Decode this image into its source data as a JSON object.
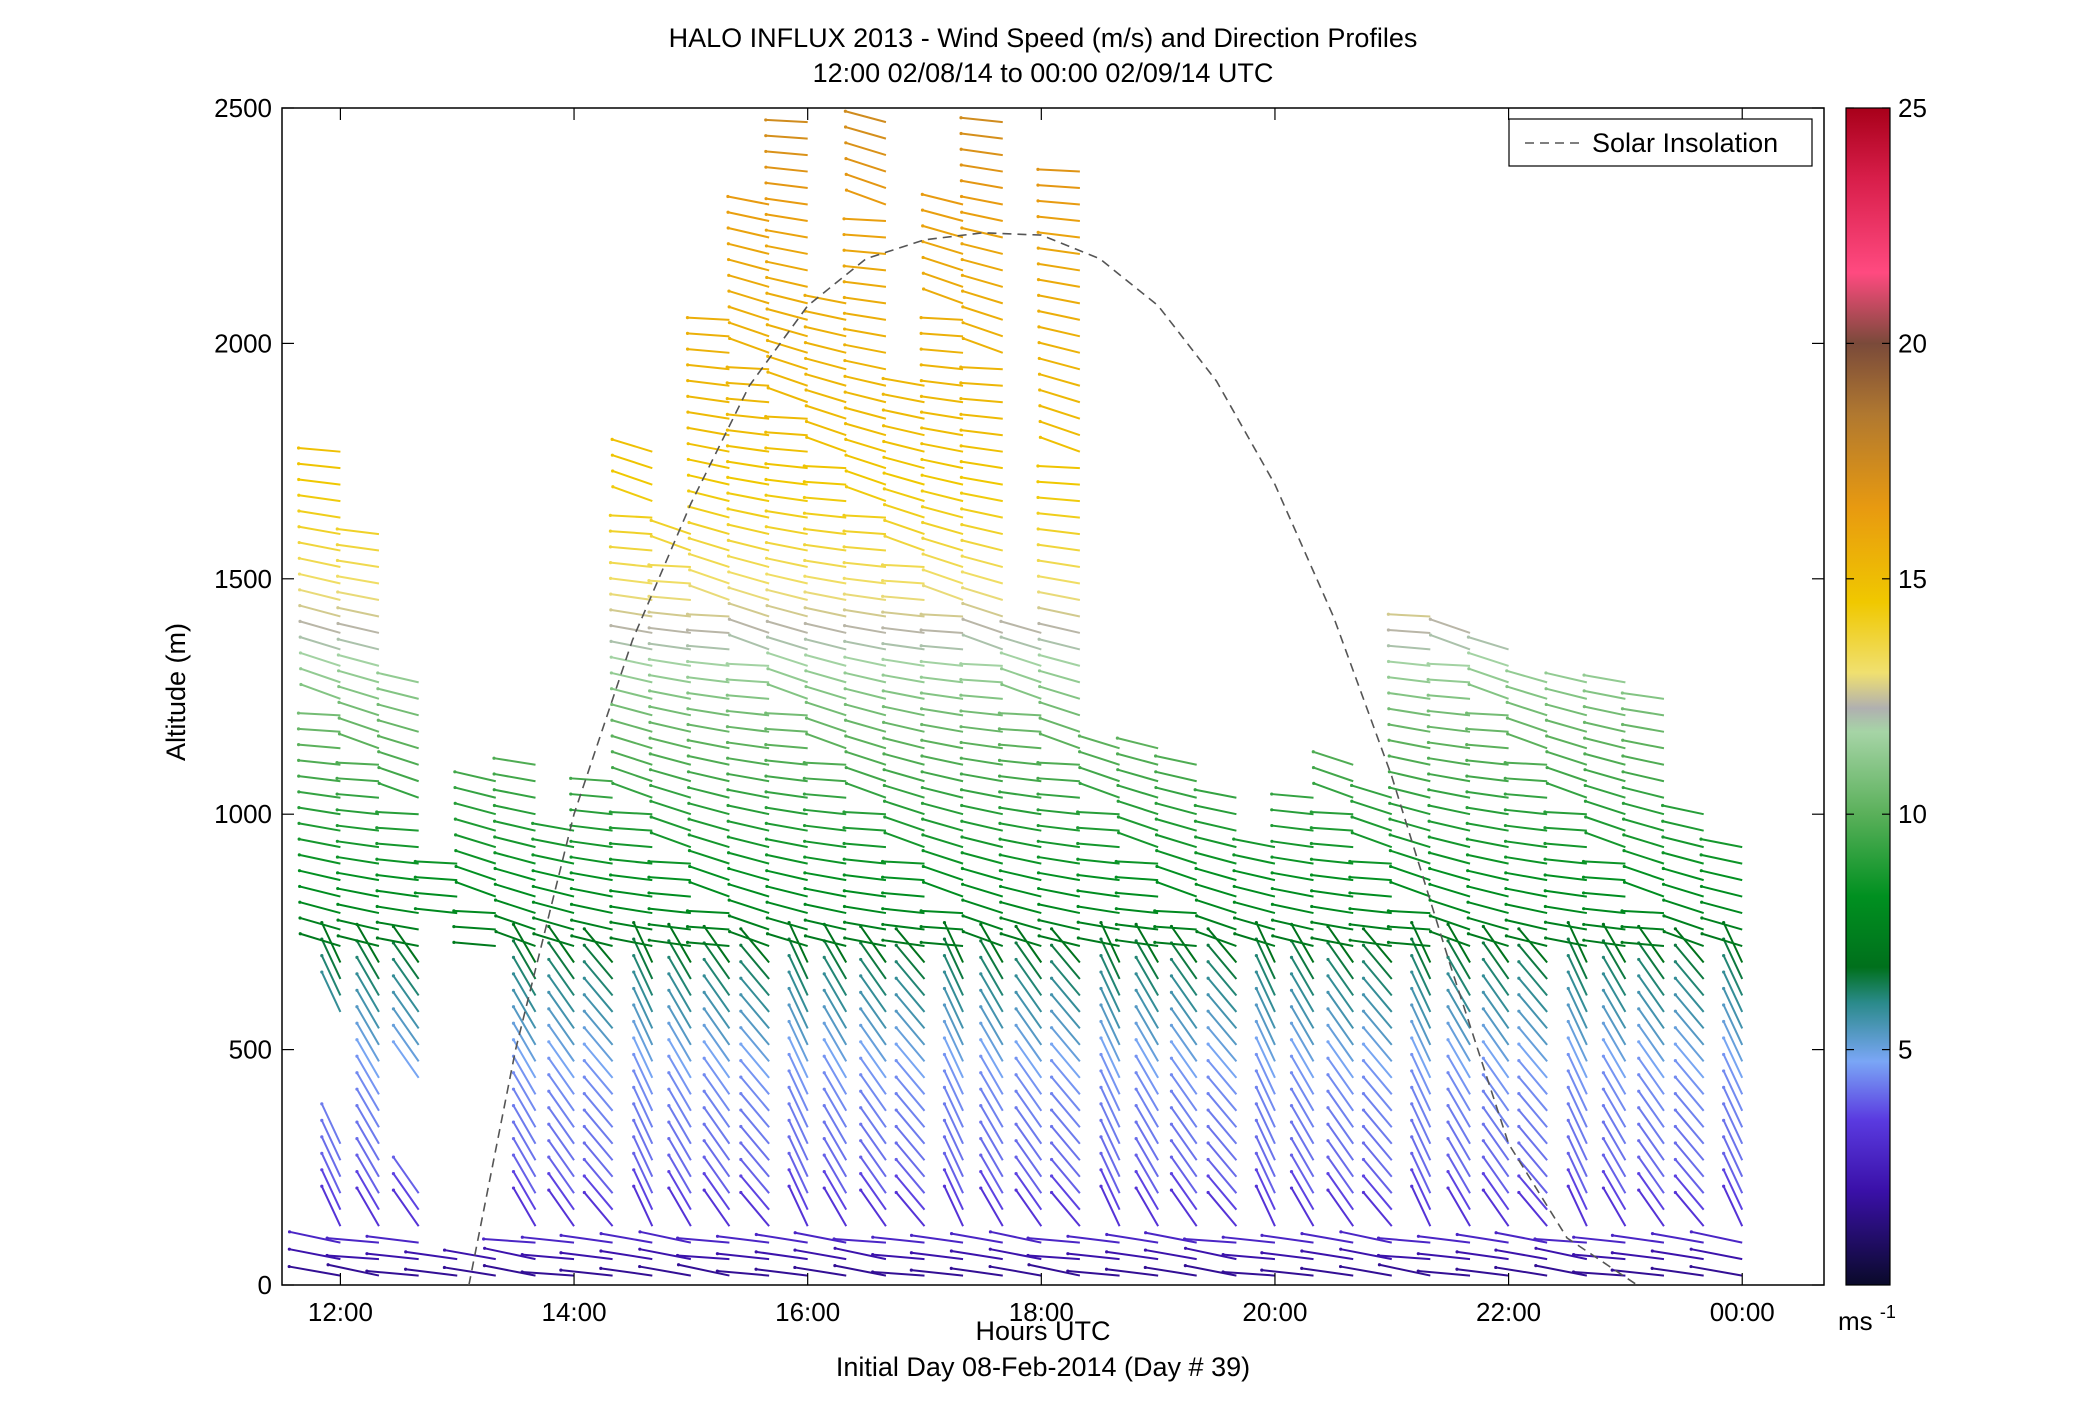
{
  "chart_data": {
    "type": "scatter",
    "title": "HALO INFLUX 2013 - Wind Speed (m/s) and Direction Profiles",
    "subtitle": "12:00 02/08/14 to 00:00 02/09/14  UTC",
    "xlabel": "Hours UTC",
    "footer": "Initial Day 08-Feb-2014 (Day # 39)",
    "ylabel": "Altitude (m)",
    "xlim": [
      11.5,
      24.7
    ],
    "ylim": [
      0,
      2500
    ],
    "x_ticks": [
      12,
      14,
      16,
      18,
      20,
      22,
      24
    ],
    "x_tick_labels": [
      "12:00",
      "14:00",
      "16:00",
      "18:00",
      "20:00",
      "22:00",
      "00:00"
    ],
    "y_ticks": [
      0,
      500,
      1000,
      1500,
      2000,
      2500
    ],
    "y_tick_labels": [
      "0",
      "500",
      "1000",
      "1500",
      "2000",
      "2500"
    ],
    "legend": {
      "label": "Solar Insolation",
      "location": "top-right"
    },
    "colorbar": {
      "ticks": [
        5,
        10,
        15,
        20,
        25
      ],
      "tick_labels": [
        "5",
        "10",
        "15",
        "20",
        "25"
      ],
      "unit_base": "ms",
      "unit_exp": "-1",
      "range": [
        0,
        25
      ]
    },
    "solar_insolation_curve": {
      "style": "dashed",
      "color": "#555555",
      "x": [
        13.1,
        13.5,
        14.0,
        14.5,
        15.0,
        15.5,
        16.0,
        16.5,
        17.0,
        17.5,
        18.0,
        18.5,
        19.0,
        19.5,
        20.0,
        20.5,
        21.0,
        21.5,
        22.0,
        22.5,
        23.1
      ],
      "y": [
        0,
        500,
        1000,
        1370,
        1660,
        1910,
        2080,
        2180,
        2220,
        2235,
        2230,
        2180,
        2080,
        1920,
        1700,
        1420,
        1080,
        680,
        300,
        100,
        0
      ]
    },
    "wind_barb_profiles": {
      "x": [
        12.0,
        12.33,
        12.67,
        13.0,
        13.33,
        13.67,
        14.0,
        14.33,
        14.67,
        15.0,
        15.33,
        15.67,
        16.0,
        16.33,
        16.67,
        17.0,
        17.33,
        17.67,
        18.0,
        18.33,
        18.67,
        19.0,
        19.33,
        19.67,
        20.0,
        20.33,
        20.67,
        21.0,
        21.33,
        21.67,
        22.0,
        22.33,
        22.67,
        23.0,
        23.33,
        23.67,
        24.0
      ],
      "top_altitude_m": [
        1780,
        1610,
        1290,
        920,
        1100,
        1130,
        990,
        1080,
        1780,
        1620,
        2050,
        2310,
        2500,
        2100,
        2500,
        1920,
        2320,
        2500,
        1400,
        2370,
        1160,
        1150,
        1120,
        1060,
        960,
        1060,
        1110,
        1060,
        1450,
        1400,
        1360,
        1290,
        1290,
        1280,
        1250,
        1000,
        950
      ],
      "bottom_altitude_m": [
        0,
        0,
        0,
        0,
        0,
        0,
        0,
        0,
        0,
        0,
        0,
        0,
        0,
        0,
        0,
        0,
        0,
        0,
        0,
        0,
        0,
        0,
        0,
        0,
        0,
        0,
        0,
        0,
        0,
        0,
        0,
        0,
        0,
        0,
        0,
        0,
        0
      ],
      "gap_altitude_m": [
        [
          300,
          580
        ],
        null,
        [
          200,
          420
        ],
        [
          60,
          780
        ],
        [
          60,
          700
        ],
        null,
        null,
        null,
        null,
        null,
        null,
        null,
        null,
        null,
        null,
        null,
        null,
        null,
        null,
        null,
        null,
        null,
        null,
        null,
        null,
        null,
        null,
        null,
        null,
        null,
        null,
        null,
        null,
        null,
        null,
        null,
        null
      ],
      "vertical_spacing_m": 35,
      "speed_profile_ms": {
        "altitude_m": [
          0,
          50,
          100,
          200,
          400,
          600,
          800,
          1000,
          1200,
          1400,
          1600,
          1800,
          2000,
          2200,
          2400,
          2500
        ],
        "speed_ms": [
          1.5,
          2.0,
          3.0,
          4.0,
          4.5,
          6.0,
          8.0,
          9.0,
          10.5,
          12.5,
          14.0,
          15.0,
          15.5,
          16.0,
          17.0,
          17.5
        ]
      }
    }
  }
}
